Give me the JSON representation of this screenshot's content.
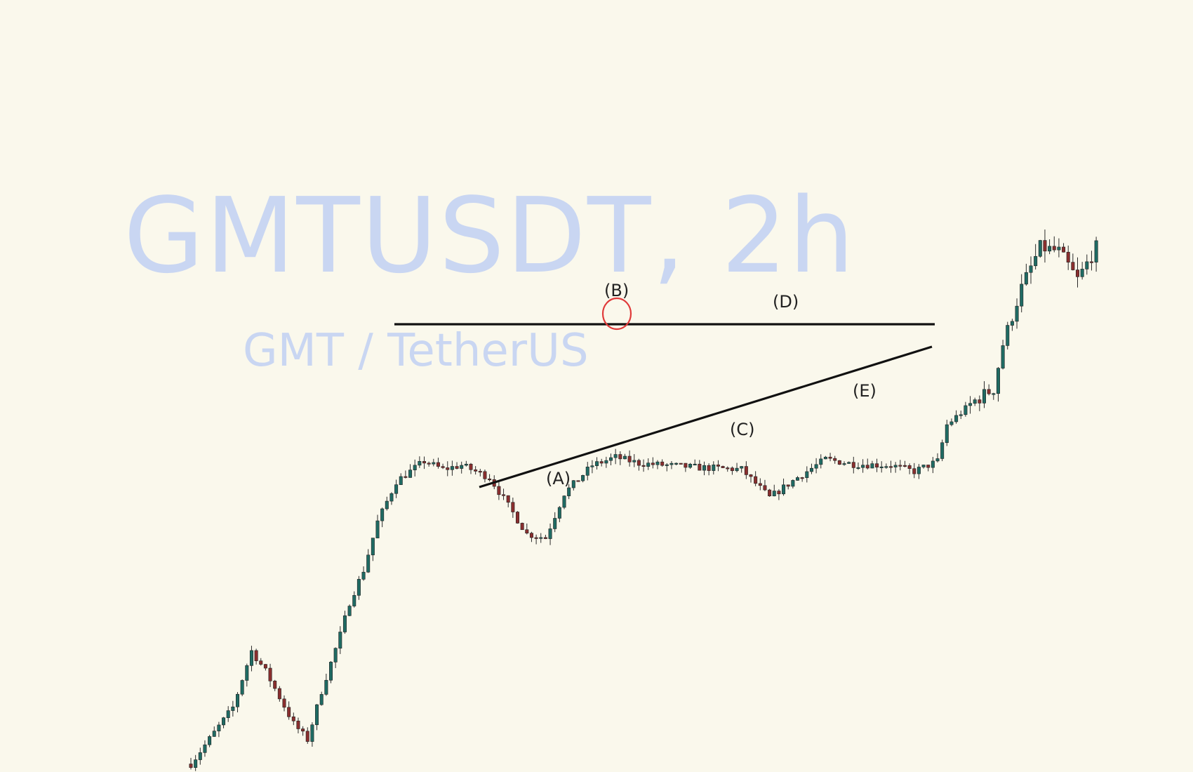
{
  "watermark": {
    "symbol_timeframe": "GMTUSDT, 2h",
    "pair_description": "GMT / TetherUS"
  },
  "colors": {
    "background": "#faf8ec",
    "watermark": "#c9d6f2",
    "candle_up": "#1f6b63",
    "candle_down": "#8a2e2e",
    "trendline": "#111111",
    "highlight_circle": "#e03a3a"
  },
  "chart_data": {
    "type": "candlestick",
    "title": "GMTUSDT, 2h",
    "subtitle": "GMT / TetherUS",
    "pattern": "contracting triangle",
    "wave_labels": [
      "(A)",
      "(B)",
      "(C)",
      "(D)",
      "(E)"
    ],
    "price_path_anchors": [
      {
        "t": 0,
        "p": 0.02
      },
      {
        "t": 9,
        "p": 0.16
      },
      {
        "t": 13,
        "p": 0.3
      },
      {
        "t": 16,
        "p": 0.25
      },
      {
        "t": 22,
        "p": 0.12
      },
      {
        "t": 25,
        "p": 0.08
      },
      {
        "t": 28,
        "p": 0.2
      },
      {
        "t": 32,
        "p": 0.34
      },
      {
        "t": 34,
        "p": 0.42
      },
      {
        "t": 37,
        "p": 0.5
      },
      {
        "t": 40,
        "p": 0.62
      },
      {
        "t": 44,
        "p": 0.72
      },
      {
        "t": 50,
        "p": 0.77
      },
      {
        "t": 54,
        "p": 0.75
      },
      {
        "t": 58,
        "p": 0.76
      },
      {
        "t": 64,
        "p": 0.73
      },
      {
        "t": 72,
        "p": 0.59
      },
      {
        "t": 76,
        "p": 0.58
      },
      {
        "t": 80,
        "p": 0.69
      },
      {
        "t": 86,
        "p": 0.76
      },
      {
        "t": 91,
        "p": 0.78
      },
      {
        "t": 96,
        "p": 0.765
      },
      {
        "t": 108,
        "p": 0.755
      },
      {
        "t": 118,
        "p": 0.75
      },
      {
        "t": 124,
        "p": 0.68
      },
      {
        "t": 130,
        "p": 0.73
      },
      {
        "t": 136,
        "p": 0.775
      },
      {
        "t": 142,
        "p": 0.763
      },
      {
        "t": 150,
        "p": 0.76
      },
      {
        "t": 155,
        "p": 0.745
      },
      {
        "t": 160,
        "p": 0.77
      },
      {
        "t": 162,
        "p": 0.86
      },
      {
        "t": 168,
        "p": 0.92
      },
      {
        "t": 172,
        "p": 0.95
      },
      {
        "t": 174,
        "p": 1.06
      },
      {
        "t": 178,
        "p": 1.2
      },
      {
        "t": 182,
        "p": 1.3
      },
      {
        "t": 186,
        "p": 1.29
      },
      {
        "t": 190,
        "p": 1.22
      },
      {
        "t": 194,
        "p": 1.3
      }
    ]
  }
}
